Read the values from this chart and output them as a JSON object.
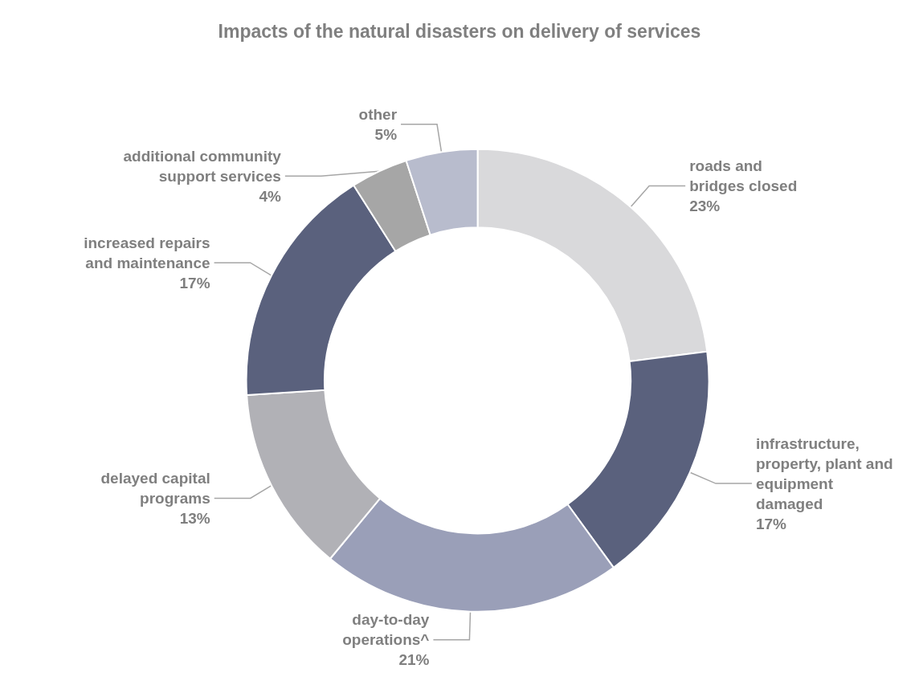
{
  "chart_data": {
    "type": "donut",
    "title": "Impacts of the natural disasters on delivery of services",
    "categories": [
      "roads and\nbridges closed",
      "infrastructure,\nproperty, plant and\nequipment\ndamaged",
      "day-to-day\noperations^",
      "delayed capital\nprograms",
      "increased repairs\nand maintenance",
      "additional community\nsupport services",
      "other"
    ],
    "values": [
      23,
      17,
      21,
      13,
      17,
      4,
      5
    ],
    "value_labels": [
      "23%",
      "17%",
      "21%",
      "13%",
      "17%",
      "4%",
      "5%"
    ],
    "colors": [
      "#d9d9db",
      "#5a617d",
      "#9a9fb8",
      "#b1b1b6",
      "#5a617d",
      "#a6a6a6",
      "#b8bccd"
    ],
    "legend": false
  }
}
